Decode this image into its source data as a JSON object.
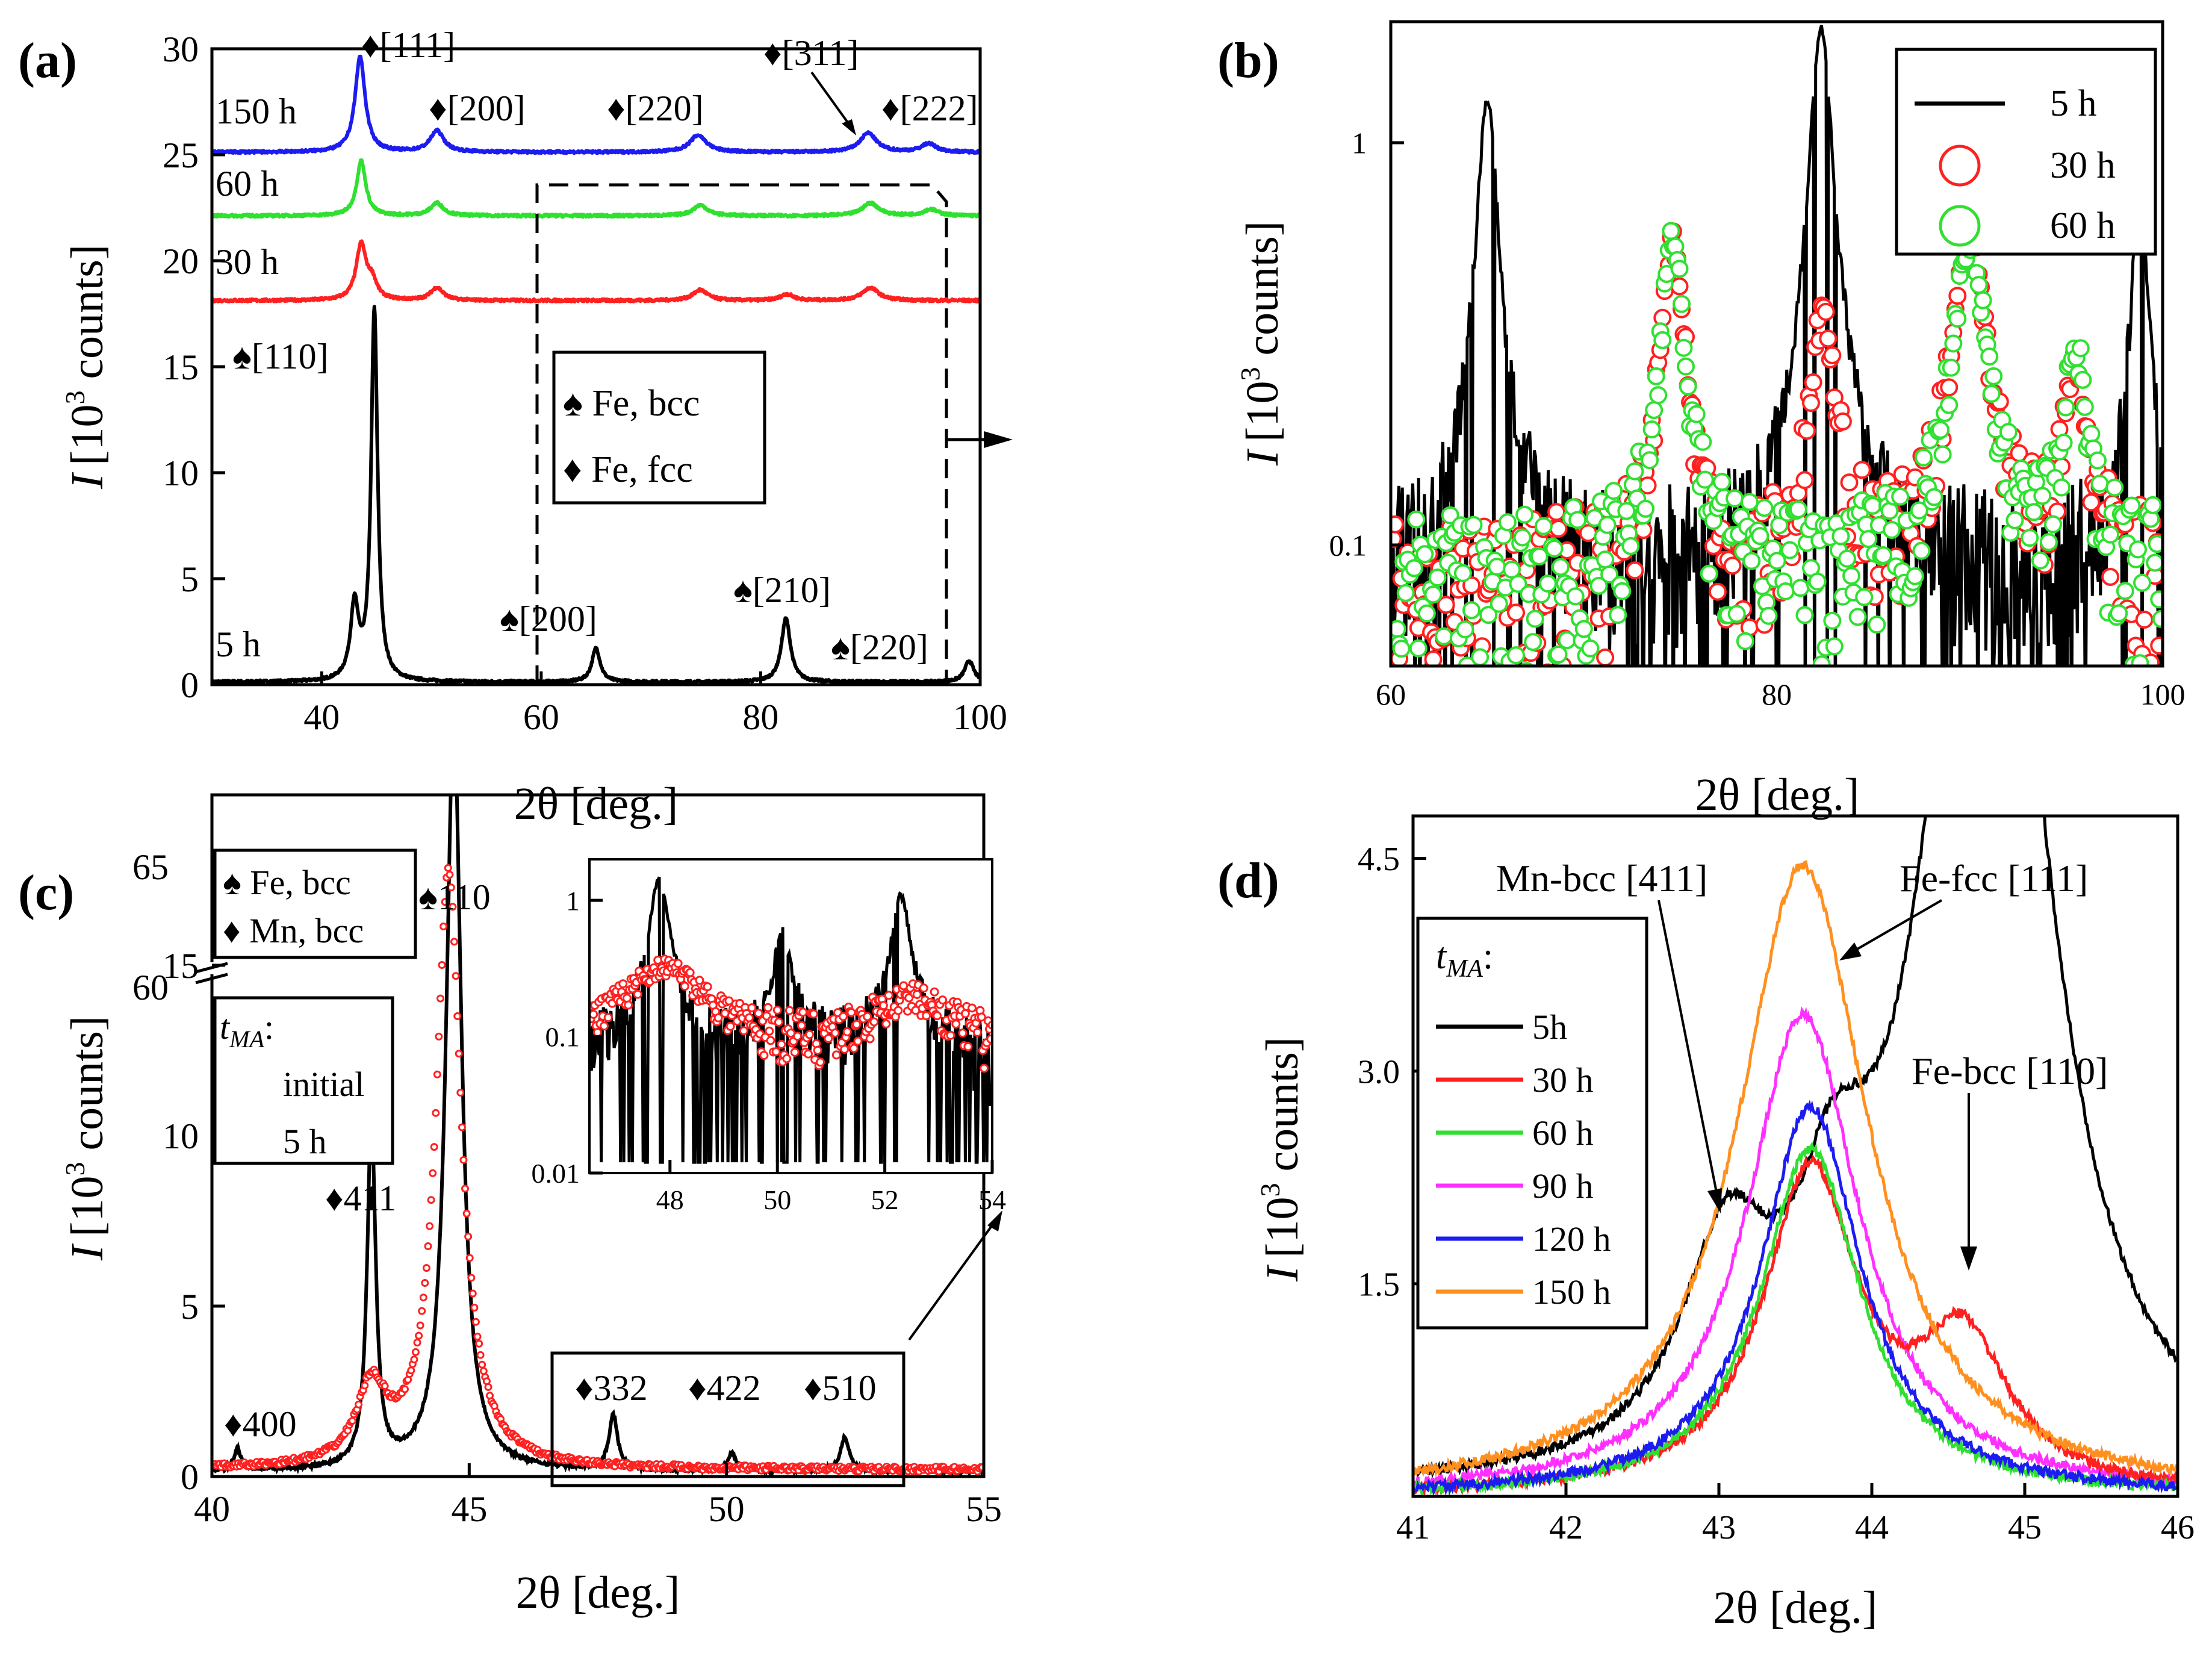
{
  "chart_data": [
    {
      "panel": "a",
      "type": "line",
      "label": "(a)",
      "xlabel": "2θ [deg.]",
      "ylabel_prefix": "I",
      "ylabel_open": "[10",
      "ylabel_exp": "3",
      "ylabel_close": " counts]",
      "xlim": [
        30,
        100
      ],
      "ylim": [
        0,
        30
      ],
      "xticks": [
        40,
        60,
        80,
        100
      ],
      "yticks": [
        0,
        5,
        10,
        15,
        20,
        25,
        30
      ],
      "series": [
        {
          "name": "5 h",
          "color": "#000000",
          "baseline": 0,
          "peaks": [
            [
              43.0,
              3.5,
              0.45
            ],
            [
              44.8,
              17.5,
              0.35
            ],
            [
              65.0,
              1.6,
              0.45
            ],
            [
              82.3,
              3.0,
              0.5
            ],
            [
              99.0,
              1.0,
              0.5
            ]
          ]
        },
        {
          "name": "30 h",
          "color": "#ff2020",
          "baseline": 18,
          "peaks": [
            [
              43.6,
              2.6,
              0.55
            ],
            [
              44.6,
              0.8,
              0.5
            ],
            [
              50.5,
              0.6,
              0.7
            ],
            [
              74.5,
              0.5,
              0.8
            ],
            [
              82.4,
              0.3,
              0.7
            ],
            [
              90.0,
              0.6,
              0.9
            ]
          ]
        },
        {
          "name": "60 h",
          "color": "#30e030",
          "baseline": 22,
          "peaks": [
            [
              43.6,
              2.6,
              0.5
            ],
            [
              50.5,
              0.6,
              0.7
            ],
            [
              74.5,
              0.5,
              0.8
            ],
            [
              90.0,
              0.6,
              0.9
            ],
            [
              95.5,
              0.3,
              0.8
            ]
          ]
        },
        {
          "name": "150 h",
          "color": "#1c1cf0",
          "baseline": 25,
          "peaks": [
            [
              43.5,
              4.5,
              0.55
            ],
            [
              50.5,
              1.0,
              0.75
            ],
            [
              74.3,
              0.8,
              0.9
            ],
            [
              89.8,
              0.9,
              0.9
            ],
            [
              95.3,
              0.4,
              0.8
            ]
          ]
        }
      ],
      "annotations": [
        "♦[111]",
        "♦[200]",
        "♦[220]",
        "♦[311]",
        "♦[222]",
        "♠[110]",
        "♠[200]",
        "♠[210]",
        "♠[220]"
      ],
      "legend": [
        "♠ Fe, bcc",
        "♦ Fe, fcc"
      ]
    },
    {
      "panel": "b",
      "type": "scatter",
      "label": "(b)",
      "xlabel": "2θ [deg.]",
      "ylabel_prefix": "I",
      "ylabel_open": "[10",
      "ylabel_exp": "3",
      "ylabel_close": " counts]",
      "yscale": "log",
      "xlim": [
        60,
        100
      ],
      "ylim": [
        0.05,
        2.0
      ],
      "xticks": [
        60,
        80,
        100
      ],
      "yticks": [
        0.1,
        1
      ],
      "ytick_labels": [
        "0.1",
        "1"
      ],
      "series": [
        {
          "name": "5 h",
          "color": "#000000",
          "style": "line",
          "peaks": [
            [
              65.0,
              1.2,
              0.5
            ],
            [
              82.3,
              1.85,
              0.55
            ],
            [
              98.8,
              0.6,
              0.45
            ]
          ]
        },
        {
          "name": "30 h",
          "color": "#ff2020",
          "style": "circle",
          "peaks": [
            [
              74.6,
              0.5,
              0.6
            ],
            [
              82.4,
              0.3,
              0.6
            ],
            [
              90.0,
              0.55,
              0.8
            ],
            [
              95.5,
              0.2,
              0.6
            ]
          ]
        },
        {
          "name": "60 h",
          "color": "#30e030",
          "style": "circle",
          "peaks": [
            [
              74.6,
              0.5,
              0.6
            ],
            [
              90.0,
              0.5,
              0.8
            ],
            [
              95.5,
              0.22,
              0.6
            ]
          ]
        }
      ],
      "legend": [
        "5 h",
        "30 h",
        "60 h"
      ]
    },
    {
      "panel": "c",
      "type": "line",
      "label": "(c)",
      "xlabel": "2θ [deg.]",
      "ylabel_prefix": "I",
      "ylabel_open": "[10",
      "ylabel_exp": "3",
      "ylabel_close": " counts]",
      "xlim": [
        40,
        55
      ],
      "ylim": [
        0,
        20
      ],
      "xticks": [
        40,
        45,
        50,
        55
      ],
      "yticks": [
        0,
        5,
        10,
        15
      ],
      "ytick_break_labels": [
        "60",
        "65"
      ],
      "series": [
        {
          "name": "initial",
          "color": "#000000",
          "style": "line",
          "peaks": [
            [
              40.5,
              0.6,
              0.08
            ],
            [
              43.1,
              10.2,
              0.1
            ],
            [
              44.7,
              22.0,
              0.18
            ],
            [
              47.8,
              1.6,
              0.1
            ],
            [
              50.1,
              0.5,
              0.1
            ],
            [
              52.3,
              1.0,
              0.1
            ]
          ]
        },
        {
          "name": "5 h",
          "color": "#ff2020",
          "style": "circle",
          "peaks": [
            [
              43.1,
              2.2,
              0.35
            ],
            [
              44.6,
              17.5,
              0.3
            ]
          ]
        }
      ],
      "annotations": [
        "♠110",
        "♦411",
        "♦400",
        "♦332",
        "♦422",
        "♦510"
      ],
      "legend_symbols": [
        "♠ Fe, bcc",
        "♦ Mn, bcc"
      ],
      "legend_title_main": "t",
      "legend_title_sub": "MA",
      "legend_title_suffix": ":",
      "legend_entries": [
        "initial",
        "5 h"
      ],
      "inset": {
        "type": "scatter",
        "yscale": "log",
        "xlim": [
          46.5,
          54
        ],
        "ylim": [
          0.01,
          2.0
        ],
        "xticks": [
          48,
          50,
          52,
          54
        ],
        "yticks": [
          0.01,
          0.1,
          1
        ],
        "ytick_labels": [
          "0.01",
          "0.1",
          "1"
        ]
      }
    },
    {
      "panel": "d",
      "type": "line",
      "label": "(d)",
      "xlabel": "2θ [deg.]",
      "ylabel_prefix": "I",
      "ylabel_open": "[10",
      "ylabel_exp": "3",
      "ylabel_close": " counts]",
      "xlim": [
        41,
        46
      ],
      "ylim": [
        0,
        4.8
      ],
      "xticks": [
        41,
        42,
        43,
        44,
        45,
        46
      ],
      "yticks": [
        1.5,
        3.0,
        4.5
      ],
      "ytick_labels": [
        "1.5",
        "3.0",
        "4.5"
      ],
      "series": [
        {
          "name": "5h",
          "color": "#000000"
        },
        {
          "name": "30 h",
          "color": "#ff2020"
        },
        {
          "name": "60 h",
          "color": "#30e030"
        },
        {
          "name": "90 h",
          "color": "#ff30ff"
        },
        {
          "name": "120 h",
          "color": "#1c1cf0"
        },
        {
          "name": "150 h",
          "color": "#ff9020"
        }
      ],
      "annotations": [
        "Mn-bcc [411]",
        "Fe-fcc [111]",
        "Fe-bcc [110]"
      ],
      "legend_title_main": "t",
      "legend_title_sub": "MA",
      "legend_title_suffix": ":"
    }
  ]
}
